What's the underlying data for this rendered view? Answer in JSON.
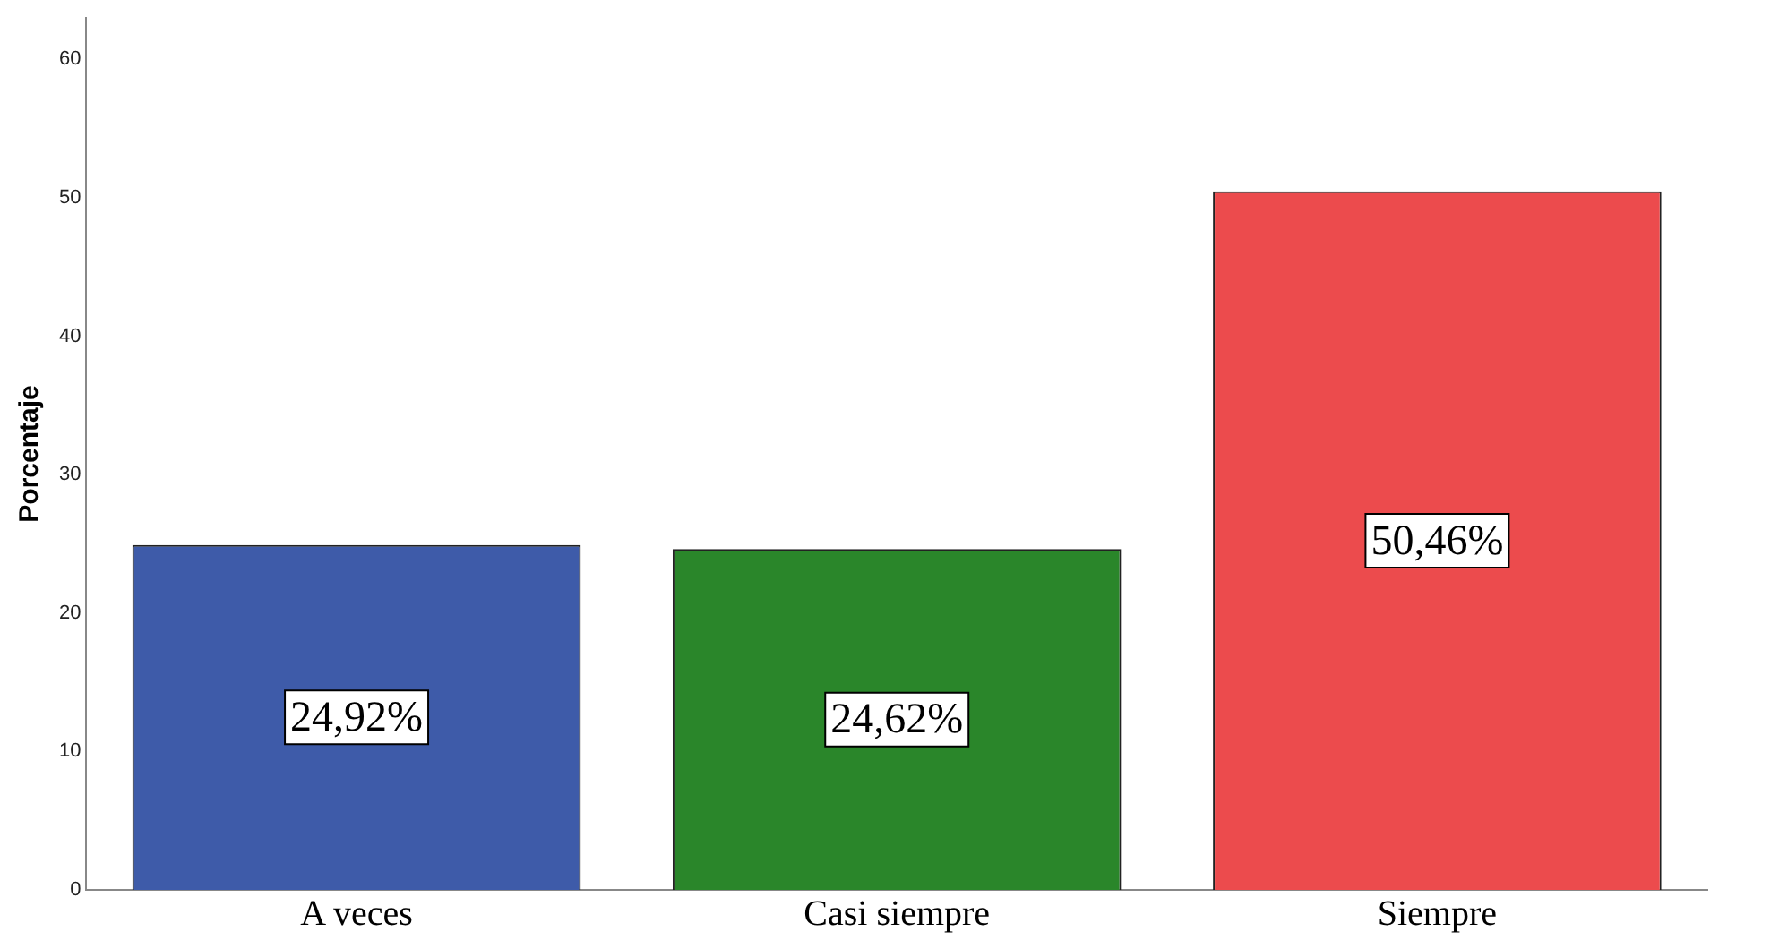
{
  "chart_data": {
    "type": "bar",
    "ylabel": "Porcentaje",
    "categories": [
      "A veces",
      "Casi siempre",
      "Siempre"
    ],
    "values": [
      24.92,
      24.62,
      50.46
    ],
    "value_labels": [
      "24,92%",
      "24,62%",
      "50,46%"
    ],
    "colors": [
      "#3e5ba9",
      "#2a862a",
      "#ec4b4d"
    ],
    "ylim": [
      0,
      63
    ],
    "yticks": [
      0,
      10,
      20,
      30,
      40,
      50,
      60
    ],
    "grid": false
  }
}
